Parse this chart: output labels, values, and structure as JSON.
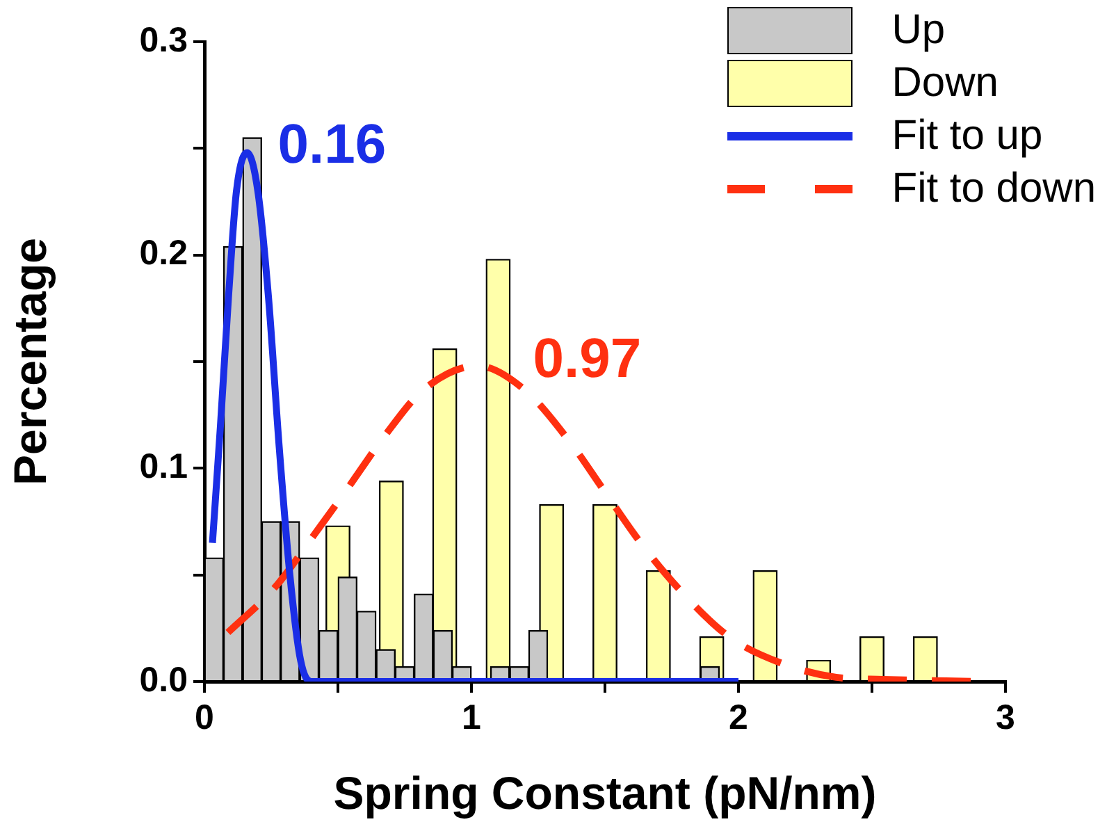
{
  "chart_data": {
    "type": "bar",
    "xlabel": "Spring Constant (pN/nm)",
    "ylabel": "Percentage",
    "xlim": [
      0,
      3
    ],
    "xticks": [
      0,
      {
        "value": 0.5,
        "label": null
      },
      1,
      {
        "value": 1.5,
        "label": null
      },
      2,
      {
        "value": 2.5,
        "label": null
      },
      3
    ],
    "ylim": [
      0,
      0.3
    ],
    "yticks": [
      {
        "value": 0,
        "label": "0.0"
      },
      {
        "value": 0.05,
        "label": null
      },
      {
        "value": 0.1,
        "label": "0.1"
      },
      {
        "value": 0.15,
        "label": null
      },
      {
        "value": 0.2,
        "label": "0.2"
      },
      {
        "value": 0.25,
        "label": null
      },
      {
        "value": 0.3,
        "label": "0.3"
      }
    ],
    "grid": false,
    "legend": "top right",
    "marker": "none",
    "series": [
      {
        "name": "Up",
        "color": "#c8c8c8",
        "x": [
          0.036,
          0.107,
          0.179,
          0.25,
          0.321,
          0.393,
          0.464,
          0.536,
          0.607,
          0.679,
          0.75,
          0.821,
          0.893,
          0.964,
          1.107,
          1.179,
          1.25,
          1.893
        ],
        "values": [
          0.058,
          0.204,
          0.255,
          0.075,
          0.075,
          0.058,
          0.024,
          0.049,
          0.033,
          0.015,
          0.007,
          0.041,
          0.024,
          0.007,
          0.007,
          0.007,
          0.024,
          0.007
        ]
      },
      {
        "name": "Down",
        "color": "#ffffaa",
        "x": [
          0.5,
          0.7,
          0.9,
          1.1,
          1.3,
          1.5,
          1.7,
          1.9,
          2.1,
          2.3,
          2.5,
          2.7
        ],
        "values": [
          0.073,
          0.094,
          0.156,
          0.198,
          0.083,
          0.083,
          0.052,
          0.021,
          0.052,
          0.01,
          0.021,
          0.021
        ]
      },
      {
        "name": "Fit to up",
        "type": "line",
        "color": "#1a2ee6",
        "line_style": "solid",
        "x": [
          0.03,
          0.06,
          0.09,
          0.12,
          0.16,
          0.2,
          0.24,
          0.28,
          0.32,
          0.36,
          0.4,
          2.0
        ],
        "values": [
          0.065,
          0.12,
          0.18,
          0.23,
          0.248,
          0.23,
          0.18,
          0.11,
          0.05,
          0.01,
          0,
          0
        ]
      },
      {
        "name": "Fit to down",
        "type": "line",
        "color": "#ff3010",
        "line_style": "dashed",
        "x": [
          0.088,
          0.263,
          0.412,
          0.533,
          0.674,
          0.822,
          1.022,
          1.197,
          1.371,
          1.494,
          1.634,
          1.773,
          1.965,
          2.174,
          2.366,
          2.54,
          2.9
        ],
        "values": [
          0.023,
          0.044,
          0.069,
          0.09,
          0.115,
          0.137,
          0.148,
          0.137,
          0.112,
          0.09,
          0.065,
          0.044,
          0.021,
          0.008,
          0.002,
          0.001,
          0
        ]
      }
    ],
    "annotations": [
      {
        "text": "0.16",
        "x": 0.16,
        "y": 0.248
      },
      {
        "text": "0.97",
        "x": 0.97,
        "y": 0.15
      }
    ]
  }
}
